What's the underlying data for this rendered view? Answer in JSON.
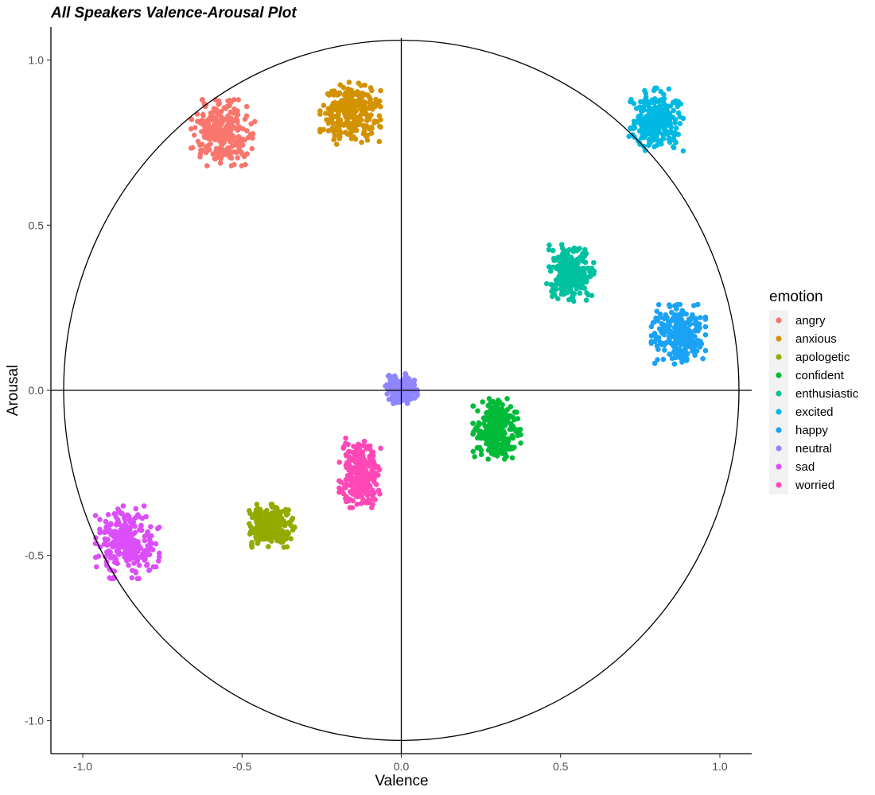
{
  "chart_data": {
    "type": "scatter",
    "title": "All Speakers Valence-Arousal Plot",
    "xlabel": "Valence",
    "ylabel": "Arousal",
    "xlim": [
      -1.1,
      1.1
    ],
    "ylim": [
      -1.1,
      1.1
    ],
    "x_ticks": [
      -1.0,
      -0.5,
      0.0,
      0.5,
      1.0
    ],
    "x_tick_labels": [
      "-1.0",
      "-0.5",
      "0.0",
      "0.5",
      "1.0"
    ],
    "y_ticks": [
      -1.0,
      -0.5,
      0.0,
      0.5,
      1.0
    ],
    "y_tick_labels": [
      "-1.0",
      "-0.5",
      "0.0",
      "0.5",
      "1.0"
    ],
    "grid": false,
    "reference_lines": {
      "horizontal": 0,
      "vertical": 0
    },
    "reference_circle": {
      "center": [
        0,
        0
      ],
      "radius": 1.06
    },
    "legend": {
      "title": "emotion",
      "placement": "right"
    },
    "series": [
      {
        "name": "angry",
        "color": "#F8766D",
        "x_range": [
          -0.66,
          -0.46
        ],
        "y_range": [
          0.68,
          0.88
        ],
        "center": [
          -0.56,
          0.78
        ]
      },
      {
        "name": "anxious",
        "color": "#D39200",
        "x_range": [
          -0.26,
          -0.07
        ],
        "y_range": [
          0.75,
          0.94
        ],
        "center": [
          -0.16,
          0.84
        ]
      },
      {
        "name": "apologetic",
        "color": "#93AA00",
        "x_range": [
          -0.48,
          -0.33
        ],
        "y_range": [
          -0.48,
          -0.35
        ],
        "center": [
          -0.41,
          -0.41
        ]
      },
      {
        "name": "confident",
        "color": "#00BA38",
        "x_range": [
          0.23,
          0.38
        ],
        "y_range": [
          -0.2,
          -0.01
        ],
        "center": [
          0.3,
          -0.12
        ]
      },
      {
        "name": "enthusiastic",
        "color": "#00C19F",
        "x_range": [
          0.45,
          0.6
        ],
        "y_range": [
          0.27,
          0.45
        ],
        "center": [
          0.53,
          0.36
        ]
      },
      {
        "name": "excited",
        "color": "#00B9E3",
        "x_range": [
          0.71,
          0.88
        ],
        "y_range": [
          0.71,
          0.9
        ],
        "center": [
          0.8,
          0.82
        ]
      },
      {
        "name": "happy",
        "color": "#1AA2F5",
        "x_range": [
          0.8,
          0.97
        ],
        "y_range": [
          0.08,
          0.26
        ],
        "center": [
          0.87,
          0.17
        ]
      },
      {
        "name": "neutral",
        "color": "#8F86FF",
        "x_range": [
          -0.05,
          0.05
        ],
        "y_range": [
          -0.04,
          0.05
        ],
        "center": [
          0.0,
          0.005
        ]
      },
      {
        "name": "sad",
        "color": "#DB4EFA",
        "x_range": [
          -0.96,
          -0.76
        ],
        "y_range": [
          -0.58,
          -0.36
        ],
        "center": [
          -0.86,
          -0.46
        ]
      },
      {
        "name": "worried",
        "color": "#FF48B6",
        "x_range": [
          -0.19,
          -0.06
        ],
        "y_range": [
          -0.36,
          -0.15
        ],
        "center": [
          -0.13,
          -0.25
        ]
      }
    ]
  }
}
